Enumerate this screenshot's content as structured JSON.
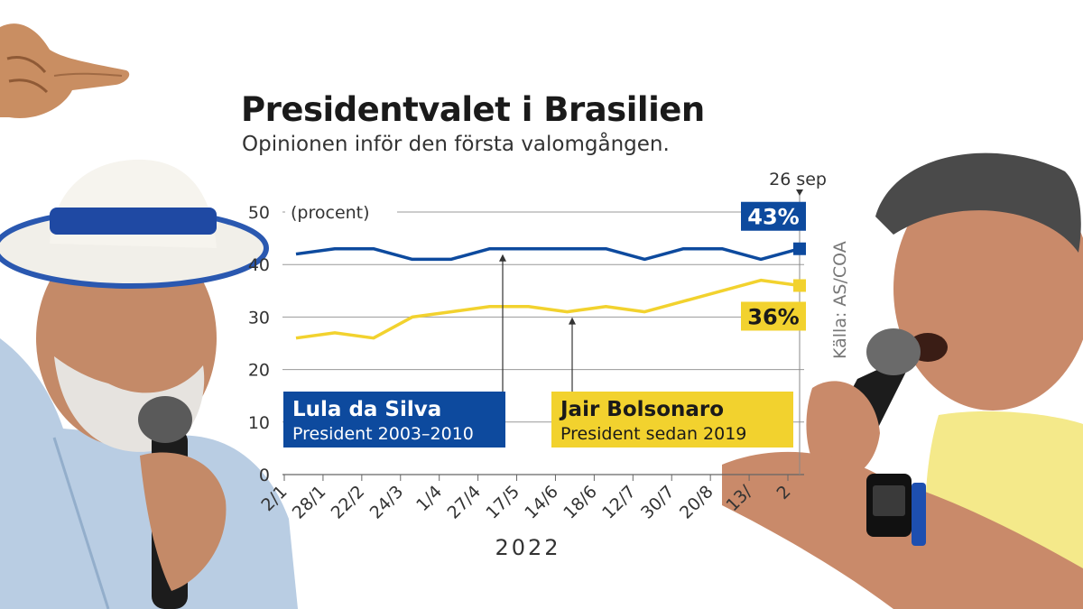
{
  "header": {
    "title": "Presidentvalet i Brasilien",
    "subtitle": "Opinionen inför den första valomgången."
  },
  "chart_data": {
    "type": "line",
    "title": "Presidentvalet i Brasilien",
    "subtitle": "Opinionen inför den första valomgången.",
    "ylabel": "(procent)",
    "xlabel": "2022",
    "ylim": [
      0,
      50
    ],
    "yticks": [
      0,
      10,
      20,
      30,
      40,
      50
    ],
    "grid": true,
    "source": "Källa: AS/COA",
    "x_tick_labels": [
      "2/1",
      "28/1",
      "22/2",
      "24/3",
      "1/4",
      "27/4",
      "17/5",
      "14/6",
      "18/6",
      "12/7",
      "30/7",
      "20/8",
      "13/",
      "2"
    ],
    "end_marker_label": "26 sep",
    "series": [
      {
        "name": "Lula da Silva",
        "description": "President 2003–2010",
        "color": "#0d4a9e",
        "values": [
          42,
          43,
          43,
          41,
          41,
          43,
          43,
          43,
          43,
          41,
          43,
          43,
          41,
          43
        ],
        "end_label": "43%"
      },
      {
        "name": "Jair Bolsonaro",
        "description": "President sedan 2019",
        "color": "#f2d22e",
        "values": [
          26,
          27,
          26,
          30,
          31,
          32,
          32,
          31,
          32,
          31,
          33,
          35,
          37,
          36
        ],
        "end_label": "36%"
      }
    ]
  },
  "photos": {
    "left": "Lula da Silva with white hat holding microphone",
    "right": "Jair Bolsonaro speaking into microphone"
  }
}
